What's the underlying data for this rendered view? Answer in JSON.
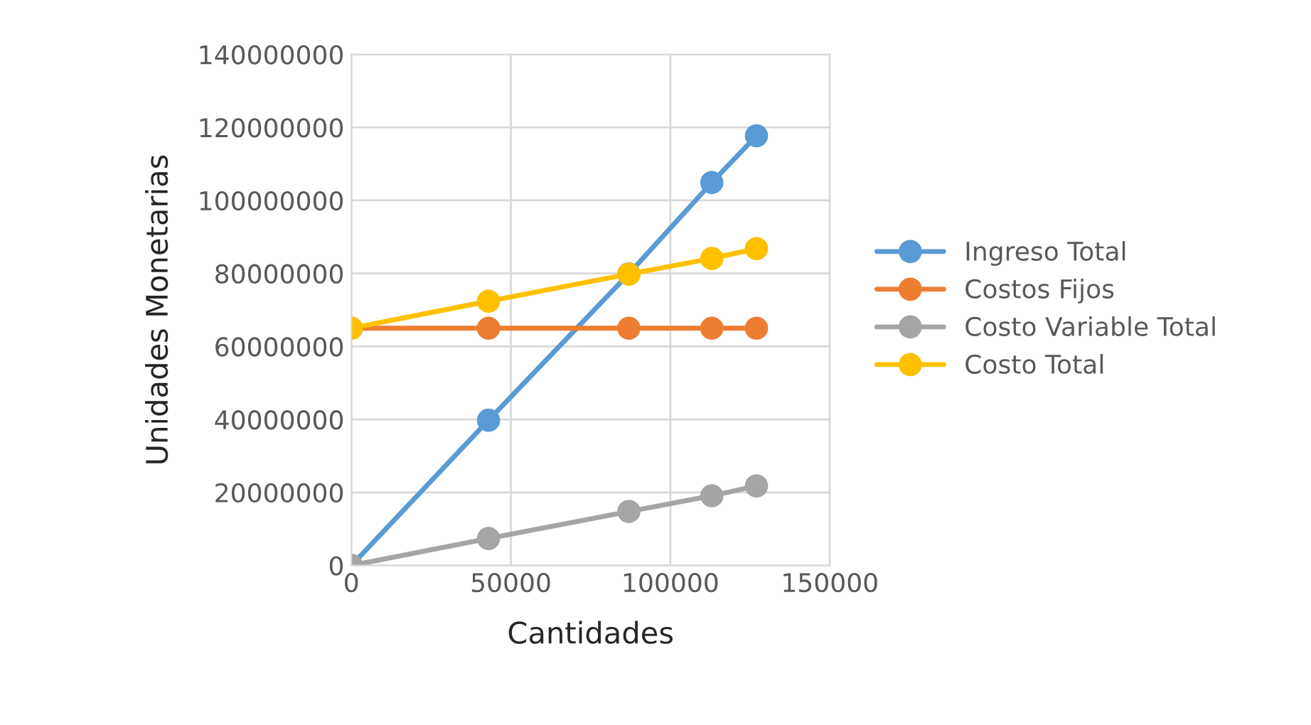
{
  "chart_data": {
    "type": "line",
    "xlabel": "Cantidades",
    "ylabel": "Unidades Monetarias",
    "x": [
      0,
      43000,
      87000,
      113000,
      127000
    ],
    "series": [
      {
        "name": "Ingreso Total",
        "color": "#5b9bd5",
        "values": [
          0,
          39800000,
          79900000,
          104900000,
          117700000
        ]
      },
      {
        "name": "Costos Fijos",
        "color": "#ed7d31",
        "values": [
          65000000,
          65000000,
          65000000,
          65000000,
          65000000
        ]
      },
      {
        "name": "Costo Variable Total",
        "color": "#a5a5a5",
        "values": [
          0,
          7400000,
          14800000,
          19100000,
          21800000
        ]
      },
      {
        "name": "Costo Total",
        "color": "#ffc000",
        "values": [
          65000000,
          72400000,
          79800000,
          84100000,
          86800000
        ]
      }
    ],
    "xlim": [
      0,
      150000
    ],
    "xticks": [
      0,
      50000,
      100000,
      150000
    ],
    "ylim": [
      0,
      140000000
    ],
    "yticks": [
      0,
      20000000,
      40000000,
      60000000,
      80000000,
      100000000,
      120000000,
      140000000
    ],
    "grid": true,
    "legend": "right",
    "marker": "circle",
    "line_style": "solid"
  }
}
